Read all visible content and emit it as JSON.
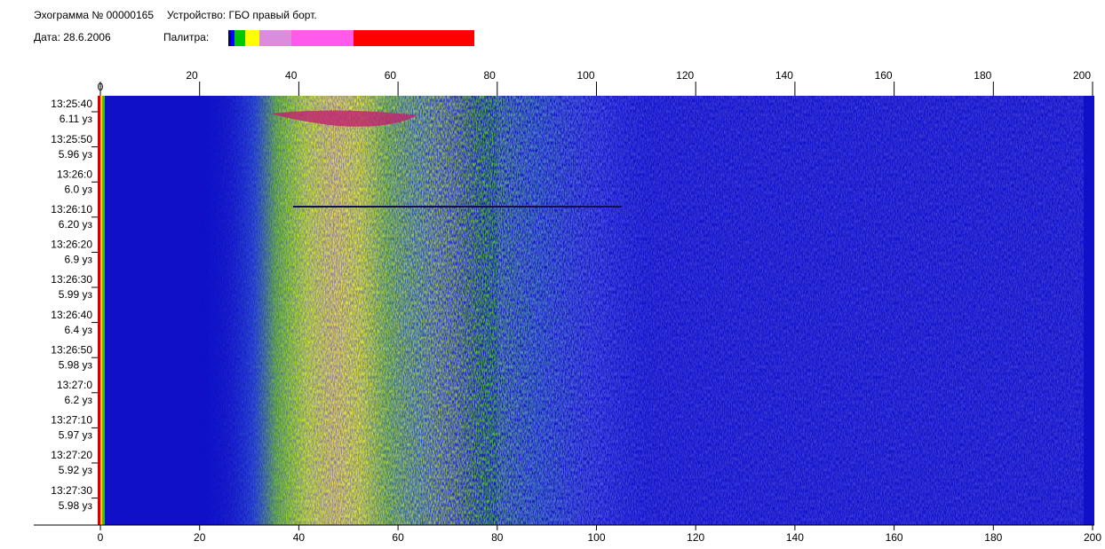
{
  "header": {
    "title": "Эхограмма № 00000165",
    "device": "Устройство: ГБО правый борт.",
    "date": "Дата: 28.6.2006",
    "palette_label": "Палитра:"
  },
  "palette": [
    "#000080",
    "#0000ff",
    "#00c800",
    "#ffff00",
    "#dc8cdc",
    "#ff5aeb",
    "#ff0000"
  ],
  "axis": {
    "xlim": [
      0,
      200
    ],
    "xticks": [
      0,
      20,
      40,
      60,
      80,
      100,
      120,
      140,
      160,
      180,
      200
    ]
  },
  "rows": [
    {
      "time": "13:25:40",
      "speed": "6.11 уз"
    },
    {
      "time": "13:25:50",
      "speed": "5.96 уз"
    },
    {
      "time": "13:26:0",
      "speed": "6.0 уз"
    },
    {
      "time": "13:26:10",
      "speed": "6.20 уз"
    },
    {
      "time": "13:26:20",
      "speed": "6.9 уз"
    },
    {
      "time": "13:26:30",
      "speed": "5.99 уз"
    },
    {
      "time": "13:26:40",
      "speed": "6.4 уз"
    },
    {
      "time": "13:26:50",
      "speed": "5.98 уз"
    },
    {
      "time": "13:27:0",
      "speed": "6.2 уз"
    },
    {
      "time": "13:27:10",
      "speed": "5.97 уз"
    },
    {
      "time": "13:27:20",
      "speed": "5.92 уз"
    },
    {
      "time": "13:27:30",
      "speed": "5.98 уз"
    }
  ]
}
